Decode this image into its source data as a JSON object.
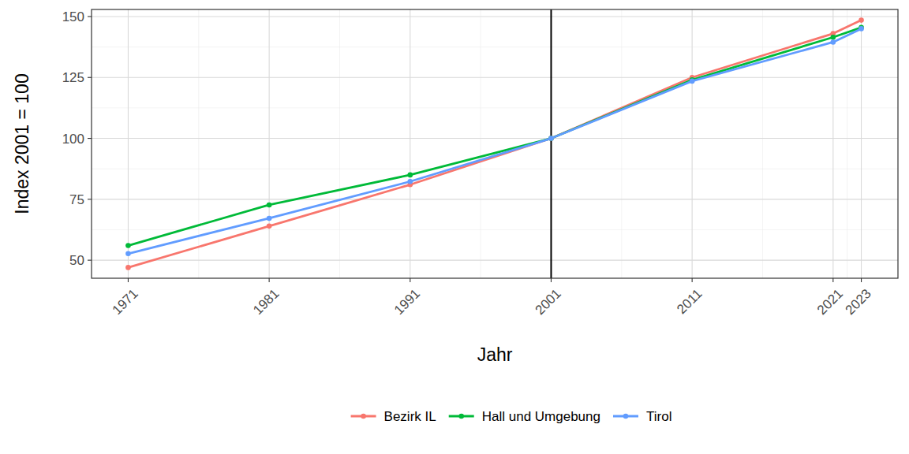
{
  "chart_data": {
    "type": "line",
    "x_label": "Jahr",
    "y_label": "Index 2001 = 100",
    "x": [
      1971,
      1981,
      1991,
      2001,
      2011,
      2021,
      2023
    ],
    "series": [
      {
        "name": "Bezirk IL",
        "color": "#F8766D",
        "marker": "circle",
        "values": [
          47,
          64,
          81,
          100,
          125,
          143,
          148.5
        ]
      },
      {
        "name": "Hall und Umgebung",
        "color": "#00BA38",
        "marker": "circle",
        "values": [
          56,
          72.7,
          85,
          100,
          124,
          141.5,
          145.5
        ]
      },
      {
        "name": "Tirol",
        "color": "#619CFF",
        "marker": "circle",
        "values": [
          52.7,
          67.2,
          82.3,
          100,
          123.5,
          139.5,
          145
        ]
      }
    ],
    "xlim": [
      1968.4,
      2025.6
    ],
    "ylim": [
      42.6,
      152.9
    ],
    "xticks": [
      1971,
      1981,
      1991,
      2001,
      2011,
      2021,
      2023
    ],
    "yticks": [
      50,
      75,
      100,
      125,
      150
    ],
    "reference_line_x": 2001,
    "grid": true,
    "legend": "bottom"
  }
}
